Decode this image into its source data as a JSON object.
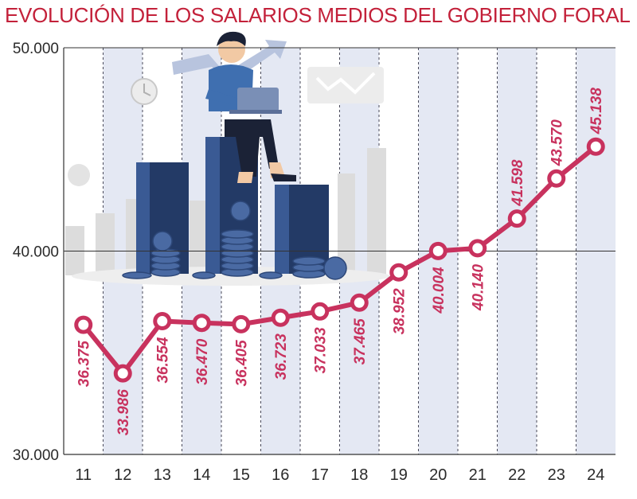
{
  "title": "EVOLUCIÓN DE LOS SALARIOS MEDIOS DEL GOBIERNO FORAL",
  "colors": {
    "title": "#c3213a",
    "line": "#c8325e",
    "band": "#e4e8f3",
    "axis": "#333333",
    "bars_dark": "#2f4b7f",
    "bars_grey": "#dcdcdc"
  },
  "illustration": {
    "description_icons": [
      "person-with-laptop-icon",
      "rising-arrow-icon",
      "clock-icon",
      "chart-board-icon",
      "coin-stack-icon"
    ]
  },
  "chart_data": {
    "type": "line",
    "title": "EVOLUCIÓN DE LOS SALARIOS MEDIOS DEL GOBIERNO FORAL",
    "categories": [
      "11",
      "12",
      "13",
      "14",
      "15",
      "16",
      "17",
      "18",
      "19",
      "20",
      "21",
      "22",
      "23",
      "24"
    ],
    "values": [
      36375,
      33986,
      36554,
      36470,
      36405,
      36723,
      37033,
      37465,
      38952,
      40004,
      40140,
      41598,
      43570,
      45138
    ],
    "value_labels": [
      "36.375",
      "33.986",
      "36.554",
      "36.470",
      "36.405",
      "36.723",
      "37.033",
      "37.465",
      "38.952",
      "40.004",
      "40.140",
      "41.598",
      "43.570",
      "45.138"
    ],
    "yticks": [
      30000,
      40000,
      50000
    ],
    "ytick_labels": [
      "30.000",
      "40.000",
      "50.000"
    ],
    "ylim": [
      30000,
      50000
    ],
    "xlabel": "",
    "ylabel": "",
    "grid": "dashed vertical separators, alternating shaded columns",
    "legend": "none"
  }
}
